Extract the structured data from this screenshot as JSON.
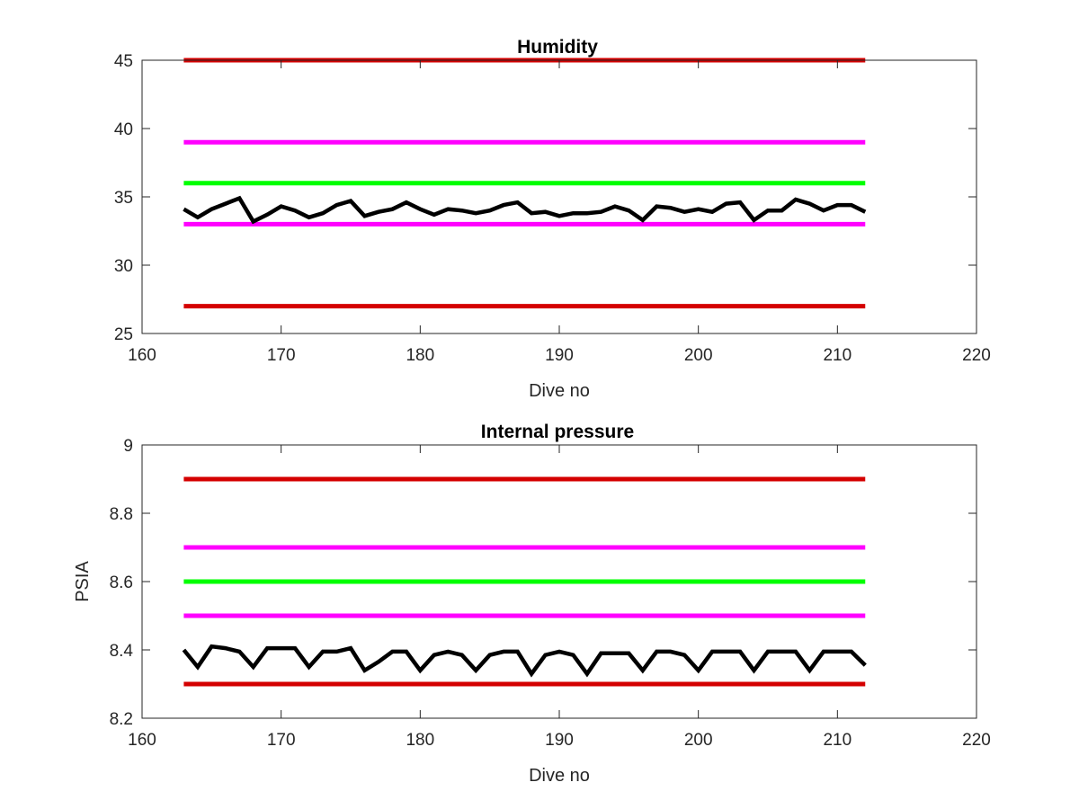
{
  "chart_data": [
    {
      "type": "line",
      "title": "Humidity",
      "xlabel": "Dive no",
      "ylabel": "",
      "xlim": [
        160,
        220
      ],
      "ylim": [
        25,
        45
      ],
      "xticks": [
        "160",
        "170",
        "180",
        "190",
        "200",
        "210",
        "220"
      ],
      "yticks": [
        "25",
        "30",
        "35",
        "40",
        "45"
      ],
      "grid": false,
      "legend": "none",
      "thresholds": [
        {
          "y": 45,
          "x": [
            163,
            212
          ],
          "color": "#d40000"
        },
        {
          "y": 39,
          "x": [
            163,
            212
          ],
          "color": "#ff00ff"
        },
        {
          "y": 36,
          "x": [
            163,
            212
          ],
          "color": "#00ff00"
        },
        {
          "y": 33,
          "x": [
            163,
            212
          ],
          "color": "#ff00ff"
        },
        {
          "y": 27,
          "x": [
            163,
            212
          ],
          "color": "#d40000"
        }
      ],
      "series": [
        {
          "color": "#000000",
          "x": [
            163,
            164,
            165,
            166,
            167,
            168,
            169,
            170,
            171,
            172,
            173,
            174,
            175,
            176,
            177,
            178,
            179,
            180,
            181,
            182,
            183,
            184,
            185,
            186,
            187,
            188,
            189,
            190,
            191,
            192,
            193,
            194,
            195,
            196,
            197,
            198,
            199,
            200,
            201,
            202,
            203,
            204,
            205,
            206,
            207,
            208,
            209,
            210,
            211,
            212
          ],
          "y": [
            34.1,
            33.5,
            34.1,
            34.5,
            34.9,
            33.2,
            33.7,
            34.3,
            34.0,
            33.5,
            33.8,
            34.4,
            34.7,
            33.6,
            33.9,
            34.1,
            34.6,
            34.1,
            33.7,
            34.1,
            34.0,
            33.8,
            34.0,
            34.4,
            34.6,
            33.8,
            33.9,
            33.6,
            33.8,
            33.8,
            33.9,
            34.3,
            34.0,
            33.3,
            34.3,
            34.2,
            33.9,
            34.1,
            33.9,
            34.5,
            34.6,
            33.3,
            34.0,
            34.0,
            34.8,
            34.5,
            34.0,
            34.4,
            34.4,
            33.9
          ]
        }
      ]
    },
    {
      "type": "line",
      "title": "Internal pressure",
      "xlabel": "Dive no",
      "ylabel": "PSIA",
      "xlim": [
        160,
        220
      ],
      "ylim": [
        8.2,
        9.0
      ],
      "xticks": [
        "160",
        "170",
        "180",
        "190",
        "200",
        "210",
        "220"
      ],
      "yticks": [
        "8.2",
        "8.4",
        "8.6",
        "8.8",
        "9"
      ],
      "grid": false,
      "legend": "none",
      "thresholds": [
        {
          "y": 8.9,
          "x": [
            163,
            212
          ],
          "color": "#d40000"
        },
        {
          "y": 8.7,
          "x": [
            163,
            212
          ],
          "color": "#ff00ff"
        },
        {
          "y": 8.6,
          "x": [
            163,
            212
          ],
          "color": "#00ff00"
        },
        {
          "y": 8.5,
          "x": [
            163,
            212
          ],
          "color": "#ff00ff"
        },
        {
          "y": 8.3,
          "x": [
            163,
            212
          ],
          "color": "#d40000"
        }
      ],
      "series": [
        {
          "color": "#000000",
          "x": [
            163,
            164,
            165,
            166,
            167,
            168,
            169,
            170,
            171,
            172,
            173,
            174,
            175,
            176,
            177,
            178,
            179,
            180,
            181,
            182,
            183,
            184,
            185,
            186,
            187,
            188,
            189,
            190,
            191,
            192,
            193,
            194,
            195,
            196,
            197,
            198,
            199,
            200,
            201,
            202,
            203,
            204,
            205,
            206,
            207,
            208,
            209,
            210,
            211,
            212
          ],
          "y": [
            8.4,
            8.35,
            8.41,
            8.405,
            8.395,
            8.35,
            8.405,
            8.405,
            8.405,
            8.35,
            8.395,
            8.395,
            8.405,
            8.34,
            8.365,
            8.395,
            8.395,
            8.34,
            8.385,
            8.395,
            8.385,
            8.34,
            8.385,
            8.395,
            8.395,
            8.33,
            8.385,
            8.395,
            8.385,
            8.33,
            8.39,
            8.39,
            8.39,
            8.34,
            8.395,
            8.395,
            8.385,
            8.34,
            8.395,
            8.395,
            8.395,
            8.34,
            8.395,
            8.395,
            8.395,
            8.34,
            8.395,
            8.395,
            8.395,
            8.355
          ]
        }
      ]
    }
  ]
}
